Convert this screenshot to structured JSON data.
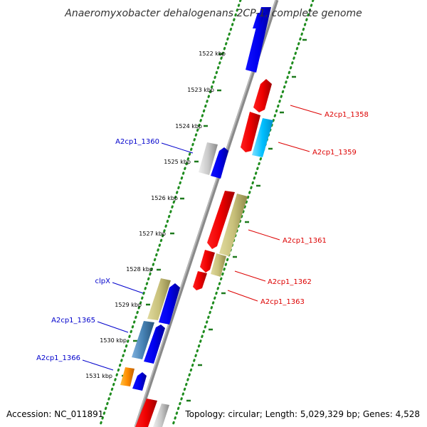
{
  "title": "Anaeromyxobacter dehalogenans 2CP-1, complete genome",
  "footer": {
    "accession": "Accession: NC_011891",
    "info": "Topology: circular; Length: 5,029,329 bp; Genes: 4,528"
  },
  "ticks": [
    "1522 kbp",
    "1523 kbp",
    "1524 kbp",
    "1525 kbp",
    "1526 kbp",
    "1527 kbp",
    "1528 kbp",
    "1529 kbp",
    "1530 kbp",
    "1531 kbp"
  ],
  "labels": {
    "left": [
      "A2cp1_1360",
      "clpX",
      "A2cp1_1365",
      "A2cp1_1366"
    ],
    "right": [
      "A2cp1_1358",
      "A2cp1_1359",
      "A2cp1_1361",
      "A2cp1_1362",
      "A2cp1_1363"
    ]
  },
  "colors": {
    "backbone": "#808080",
    "dotted_ring": "#1e8c1e",
    "tick_mark": "#1e7a1e",
    "forward_label": "#0000cc",
    "reverse_label": "#dd0000",
    "gene_blue": "#0000ee",
    "gene_red": "#ee0000",
    "gene_cyan": "#00bfff",
    "gene_olive": "#c8c07a",
    "gene_grey": "#c8c8c8",
    "gene_steel": "#4682b4",
    "gene_orange": "#ff8c00"
  }
}
